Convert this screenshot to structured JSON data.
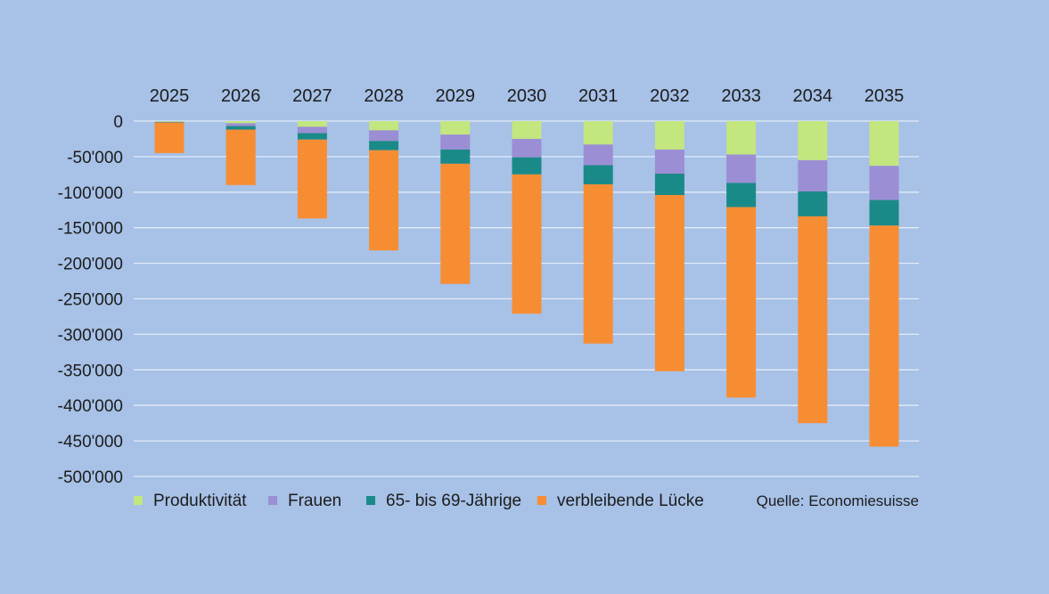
{
  "chart_data": {
    "type": "bar",
    "stacked": true,
    "categories": [
      "2025",
      "2026",
      "2027",
      "2028",
      "2029",
      "2030",
      "2031",
      "2032",
      "2033",
      "2034",
      "2035"
    ],
    "series": [
      {
        "name": "Produktivität",
        "color": "#c3e67f",
        "values": [
          -1000,
          -3000,
          -8000,
          -13000,
          -19000,
          -25000,
          -33000,
          -40000,
          -47000,
          -55000,
          -63000
        ]
      },
      {
        "name": "Frauen",
        "color": "#9b8ed4",
        "values": [
          -500,
          -4000,
          -9000,
          -15000,
          -21000,
          -26000,
          -29000,
          -34000,
          -40000,
          -44000,
          -48000
        ]
      },
      {
        "name": "65- bis 69-Jährige",
        "color": "#1a8a88",
        "values": [
          -500,
          -5000,
          -9000,
          -13000,
          -20000,
          -24000,
          -27000,
          -30000,
          -34000,
          -35000,
          -36000
        ]
      },
      {
        "name": "verbleibende Lücke",
        "color": "#f78d33",
        "values": [
          -43000,
          -78000,
          -111000,
          -141000,
          -169000,
          -196000,
          -224000,
          -248000,
          -268000,
          -291000,
          -311000
        ]
      }
    ],
    "ylim": [
      -500000,
      0
    ],
    "yticks": [
      0,
      -50000,
      -100000,
      -150000,
      -200000,
      -250000,
      -300000,
      -350000,
      -400000,
      -450000,
      -500000
    ],
    "ytick_labels": [
      "0",
      "-50'000",
      "-100'000",
      "-150'000",
      "-200'000",
      "-250'000",
      "-300'000",
      "-350'000",
      "-400'000",
      "-450'000",
      "-500'000"
    ],
    "x_axis_position": "top",
    "grid": true,
    "legend_position": "bottom-left",
    "source": "Quelle: Economiesuisse"
  }
}
